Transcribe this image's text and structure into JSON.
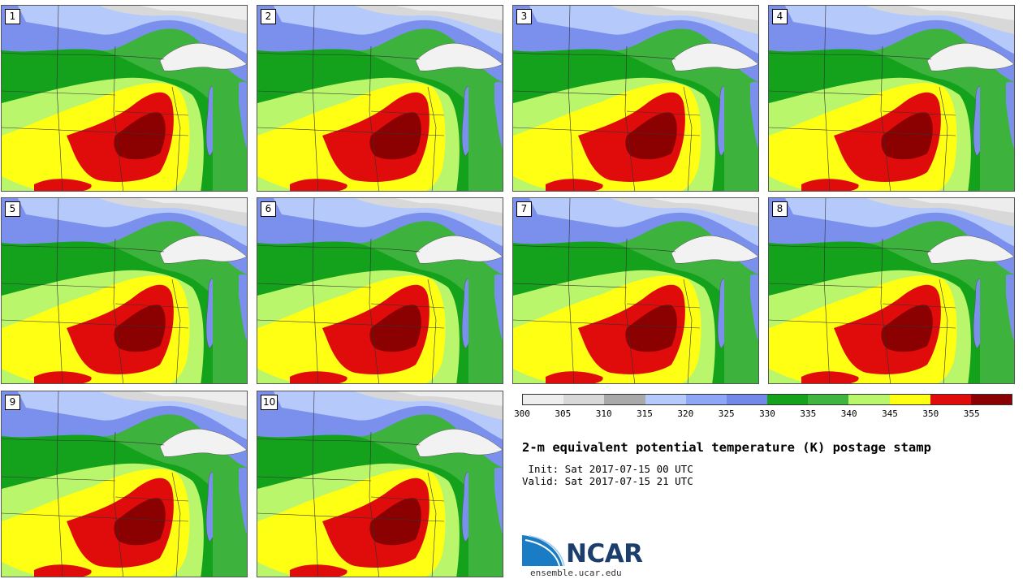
{
  "panels": [
    {
      "label": "1"
    },
    {
      "label": "2"
    },
    {
      "label": "3"
    },
    {
      "label": "4"
    },
    {
      "label": "5"
    },
    {
      "label": "6"
    },
    {
      "label": "7"
    },
    {
      "label": "8"
    },
    {
      "label": "9"
    },
    {
      "label": "10"
    }
  ],
  "colorbar": {
    "ticks": [
      "300",
      "305",
      "310",
      "315",
      "320",
      "325",
      "330",
      "335",
      "340",
      "345",
      "350",
      "355"
    ],
    "colors": [
      "#eeeeee",
      "#d8d8d8",
      "#a9a9a9",
      "#b6c9fb",
      "#8da6f6",
      "#7289ea",
      "#14a21c",
      "#3fb43f",
      "#b9f66b",
      "#ffff14",
      "#e00c0c",
      "#8b0000"
    ]
  },
  "title": "2-m equivalent potential temperature (K) postage stamp",
  "init": " Init: Sat 2017-07-15 00 UTC",
  "valid": "Valid: Sat 2017-07-15 21 UTC",
  "logo": {
    "text": "NCAR",
    "site": "ensemble.ucar.edu",
    "icon": "ncar-logo-icon",
    "brand_color": "#1b3e6d"
  }
}
